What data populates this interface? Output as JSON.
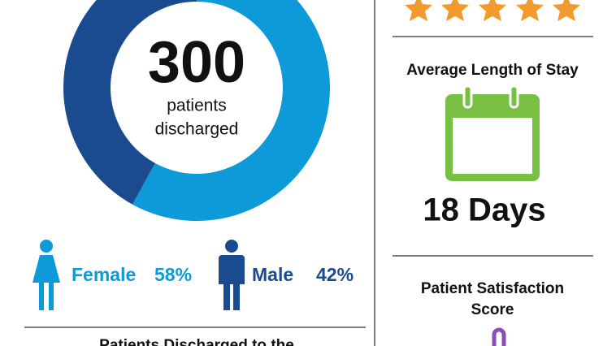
{
  "chart_data": {
    "type": "donut",
    "categories": [
      "Female",
      "Male"
    ],
    "values": [
      58,
      42
    ],
    "value_labels": [
      "58%",
      "42%"
    ],
    "colors": [
      "#0e9ad9",
      "#1b4b8f"
    ],
    "center_value": "300",
    "center_lines": [
      "patients",
      "discharged"
    ]
  },
  "left_footer": "Patients Discharged to the",
  "right_panel": {
    "length_of_stay_title": "Average Length of Stay",
    "length_of_stay_value": "18 Days",
    "satisfaction_title": [
      "Patient Satisfaction",
      "Score"
    ]
  }
}
